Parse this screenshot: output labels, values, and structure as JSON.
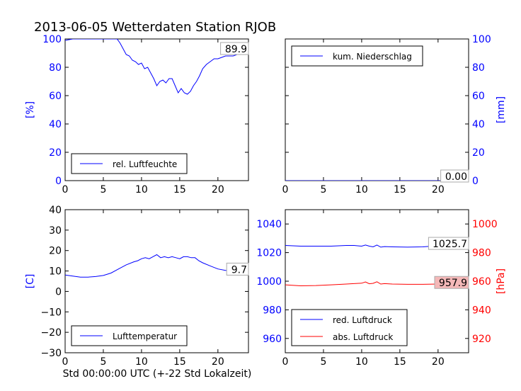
{
  "figure_title": "2013-06-05 Wetterdaten Station RJOB",
  "figure_xlabel": "Std 00:00:00 UTC (+-22 Std Lokalzeit)",
  "colors": {
    "blue": "#0000ff",
    "red": "#ff0000",
    "black": "#000000",
    "value_box_red": "#f4b8b8"
  },
  "chart_data": [
    {
      "id": "humidity",
      "type": "line",
      "title": "",
      "xlabel": "",
      "ylabel": "[%]",
      "ylabel_color": "#0000ff",
      "ylabel_side": "left",
      "xlim": [
        0,
        24
      ],
      "ylim": [
        0,
        100
      ],
      "xticks": [
        0,
        5,
        10,
        15,
        20
      ],
      "yticks": [
        0,
        20,
        40,
        60,
        80,
        100
      ],
      "ytick_color": "#0000ff",
      "legend": "bottom-left",
      "series": [
        {
          "name": "rel. Luftfeuchte",
          "color": "#0000ff",
          "x": [
            0,
            1,
            2,
            3,
            4,
            5,
            6,
            6.8,
            7.2,
            7.6,
            8,
            8.4,
            8.8,
            9.2,
            9.6,
            10,
            10.4,
            10.8,
            11.2,
            11.6,
            12,
            12.4,
            12.8,
            13.2,
            13.6,
            14,
            14.4,
            14.8,
            15.2,
            15.6,
            16,
            16.4,
            16.8,
            17.2,
            17.6,
            18,
            18.5,
            19,
            19.5,
            20,
            20.5,
            21,
            21.5,
            22,
            22.5,
            23,
            23.5,
            24
          ],
          "y": [
            99,
            100,
            100,
            100,
            100,
            100,
            100,
            100,
            97,
            93,
            89,
            88,
            85,
            84,
            82,
            83,
            79,
            80,
            76,
            72,
            67,
            70,
            71,
            69,
            72,
            72,
            67,
            62,
            65,
            62,
            61,
            63,
            67,
            70,
            74,
            79,
            82,
            84,
            86,
            86,
            87,
            88,
            88,
            88,
            89,
            89,
            90,
            90
          ]
        }
      ],
      "value_label": "89.9"
    },
    {
      "id": "precipitation",
      "type": "line",
      "title": "",
      "xlabel": "",
      "ylabel": "[mm]",
      "ylabel_color": "#0000ff",
      "ylabel_side": "right",
      "xlim": [
        0,
        24
      ],
      "ylim": [
        0,
        100
      ],
      "xticks": [
        0,
        5,
        10,
        15,
        20
      ],
      "yticks": [
        0,
        20,
        40,
        60,
        80,
        100
      ],
      "ytick_color": "#0000ff",
      "legend": "top-left",
      "series": [
        {
          "name": "kum. Niederschlag",
          "color": "#0000ff",
          "x": [
            0,
            24
          ],
          "y": [
            0,
            0
          ]
        }
      ],
      "value_label": "0.00"
    },
    {
      "id": "temperature",
      "type": "line",
      "title": "",
      "xlabel": "",
      "ylabel": "[C]",
      "ylabel_color": "#0000ff",
      "ylabel_side": "left",
      "xlim": [
        0,
        24
      ],
      "ylim": [
        -30,
        40
      ],
      "xticks": [
        0,
        5,
        10,
        15,
        20
      ],
      "yticks": [
        -30,
        -20,
        -10,
        0,
        10,
        20,
        30,
        40
      ],
      "ytick_color": "#000000",
      "legend": "bottom-left",
      "series": [
        {
          "name": "Lufttemperatur",
          "color": "#0000ff",
          "x": [
            0,
            1,
            2,
            3,
            4,
            5,
            6,
            7,
            8,
            9,
            9.5,
            10,
            10.5,
            11,
            11.5,
            12,
            12.5,
            13,
            13.5,
            14,
            14.5,
            15,
            15.5,
            16,
            16.5,
            17,
            17.5,
            18,
            19,
            20,
            21,
            22,
            23,
            24
          ],
          "y": [
            8,
            7.5,
            7,
            7,
            7.3,
            7.8,
            9,
            11,
            13,
            14.5,
            15,
            16,
            16.5,
            16,
            17,
            18,
            16.5,
            17,
            16.5,
            17,
            16.5,
            16,
            17,
            17,
            16.5,
            16.5,
            15,
            14,
            12.5,
            11,
            10.3,
            10,
            9.8,
            9.7
          ]
        }
      ],
      "value_label": "9.7"
    },
    {
      "id": "pressure",
      "type": "line",
      "title": "",
      "xlabel": "",
      "ylabel": "[hPa]",
      "ylabel_color": "#ff0000",
      "ylabel_side": "right",
      "xlim": [
        0,
        24
      ],
      "ylim": [
        950,
        1050
      ],
      "ylim_right": [
        910,
        1010
      ],
      "xticks": [
        0,
        5,
        10,
        15,
        20
      ],
      "yticks": [
        960,
        980,
        1000,
        1020,
        1040
      ],
      "yticks_right": [
        920,
        940,
        960,
        980,
        1000
      ],
      "ytick_color": "#0000ff",
      "ytick_color_right": "#ff0000",
      "legend": "bottom-left",
      "series": [
        {
          "name": "red. Luftdruck",
          "color": "#0000ff",
          "axis": "left",
          "x": [
            0,
            2,
            4,
            6,
            8,
            9,
            10,
            10.5,
            11,
            11.5,
            12,
            12.5,
            13,
            14,
            16,
            18,
            20,
            22,
            24
          ],
          "y": [
            1025,
            1024.5,
            1024.5,
            1024.5,
            1025,
            1025,
            1024.5,
            1025.3,
            1024.5,
            1024,
            1025.3,
            1023.8,
            1024.2,
            1024,
            1023.8,
            1024,
            1024.8,
            1025.5,
            1025.7
          ]
        },
        {
          "name": "abs. Luftdruck",
          "color": "#ff0000",
          "axis": "right",
          "x": [
            0,
            2,
            4,
            6,
            8,
            9,
            10,
            10.5,
            11,
            11.5,
            12,
            12.5,
            13,
            14,
            16,
            18,
            20,
            22,
            24
          ],
          "y": [
            957.5,
            956.8,
            957,
            957.5,
            958,
            958.3,
            958.6,
            959.5,
            958.2,
            958.5,
            959.6,
            958,
            958.3,
            958,
            957.8,
            957.8,
            958,
            957.9,
            957.9
          ]
        }
      ],
      "value_label_left": "1025.7",
      "value_label_right": "957.9"
    }
  ]
}
